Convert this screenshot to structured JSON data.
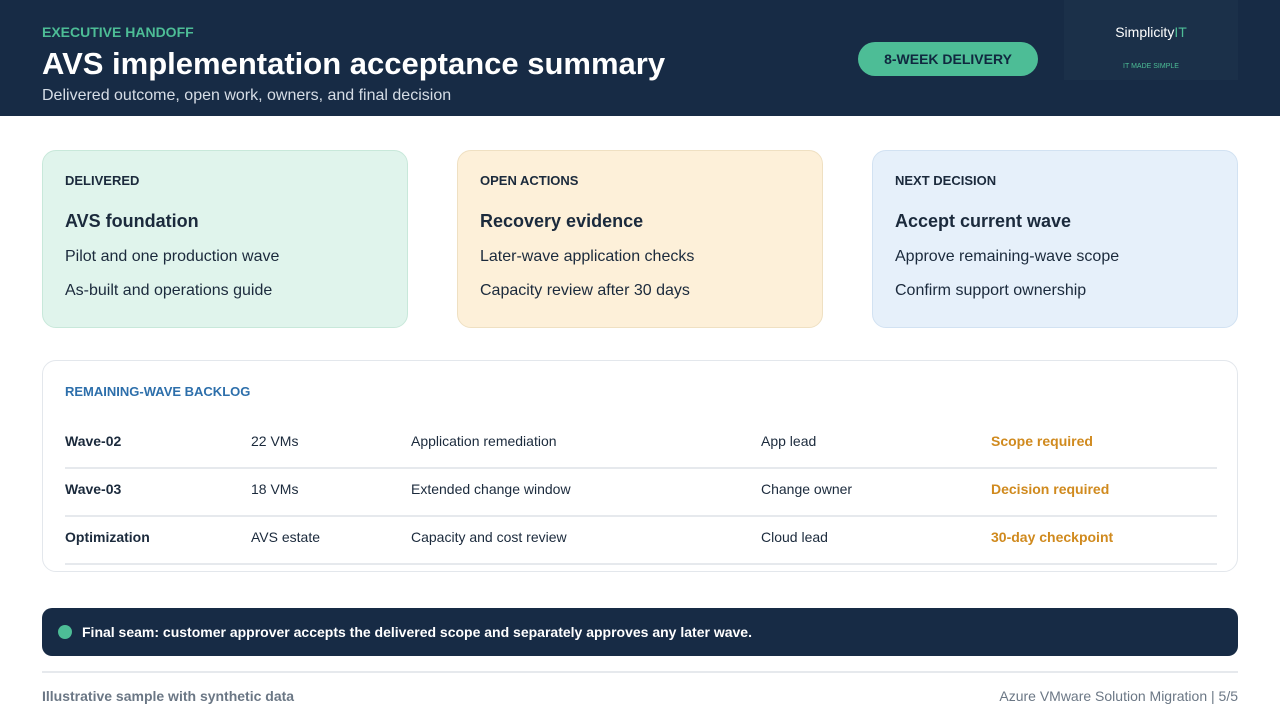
{
  "header": {
    "eyebrow": "EXECUTIVE HANDOFF",
    "title": "AVS implementation acceptance summary",
    "subtitle": "Delivered outcome, open work, owners, and final decision",
    "badge": "8-WEEK DELIVERY",
    "logo": {
      "name_a": "Simplicity",
      "name_b": "IT",
      "tagline": "IT MADE SIMPLE"
    }
  },
  "cards": [
    {
      "label": "DELIVERED",
      "title": "AVS foundation",
      "items": [
        "Pilot and one production wave",
        "As-built and operations guide"
      ]
    },
    {
      "label": "OPEN ACTIONS",
      "title": "Recovery evidence",
      "items": [
        "Later-wave application checks",
        "Capacity review after 30 days"
      ]
    },
    {
      "label": "NEXT DECISION",
      "title": "Accept current wave",
      "items": [
        "Approve remaining-wave scope",
        "Confirm support ownership"
      ]
    }
  ],
  "table": {
    "title": "REMAINING-WAVE BACKLOG",
    "rows": [
      [
        "Wave-02",
        "22 VMs",
        "Application remediation",
        "App lead",
        "Scope required"
      ],
      [
        "Wave-03",
        "18 VMs",
        "Extended change window",
        "Change owner",
        "Decision required"
      ],
      [
        "Optimization",
        "AVS estate",
        "Capacity and cost review",
        "Cloud lead",
        "30-day checkpoint"
      ]
    ]
  },
  "banner": "Final seam: customer approver accepts the delivered scope and separately approves any later wave.",
  "footer": {
    "left": "Illustrative sample with synthetic data",
    "right": "Azure VMware Solution Migration | 5/5"
  }
}
